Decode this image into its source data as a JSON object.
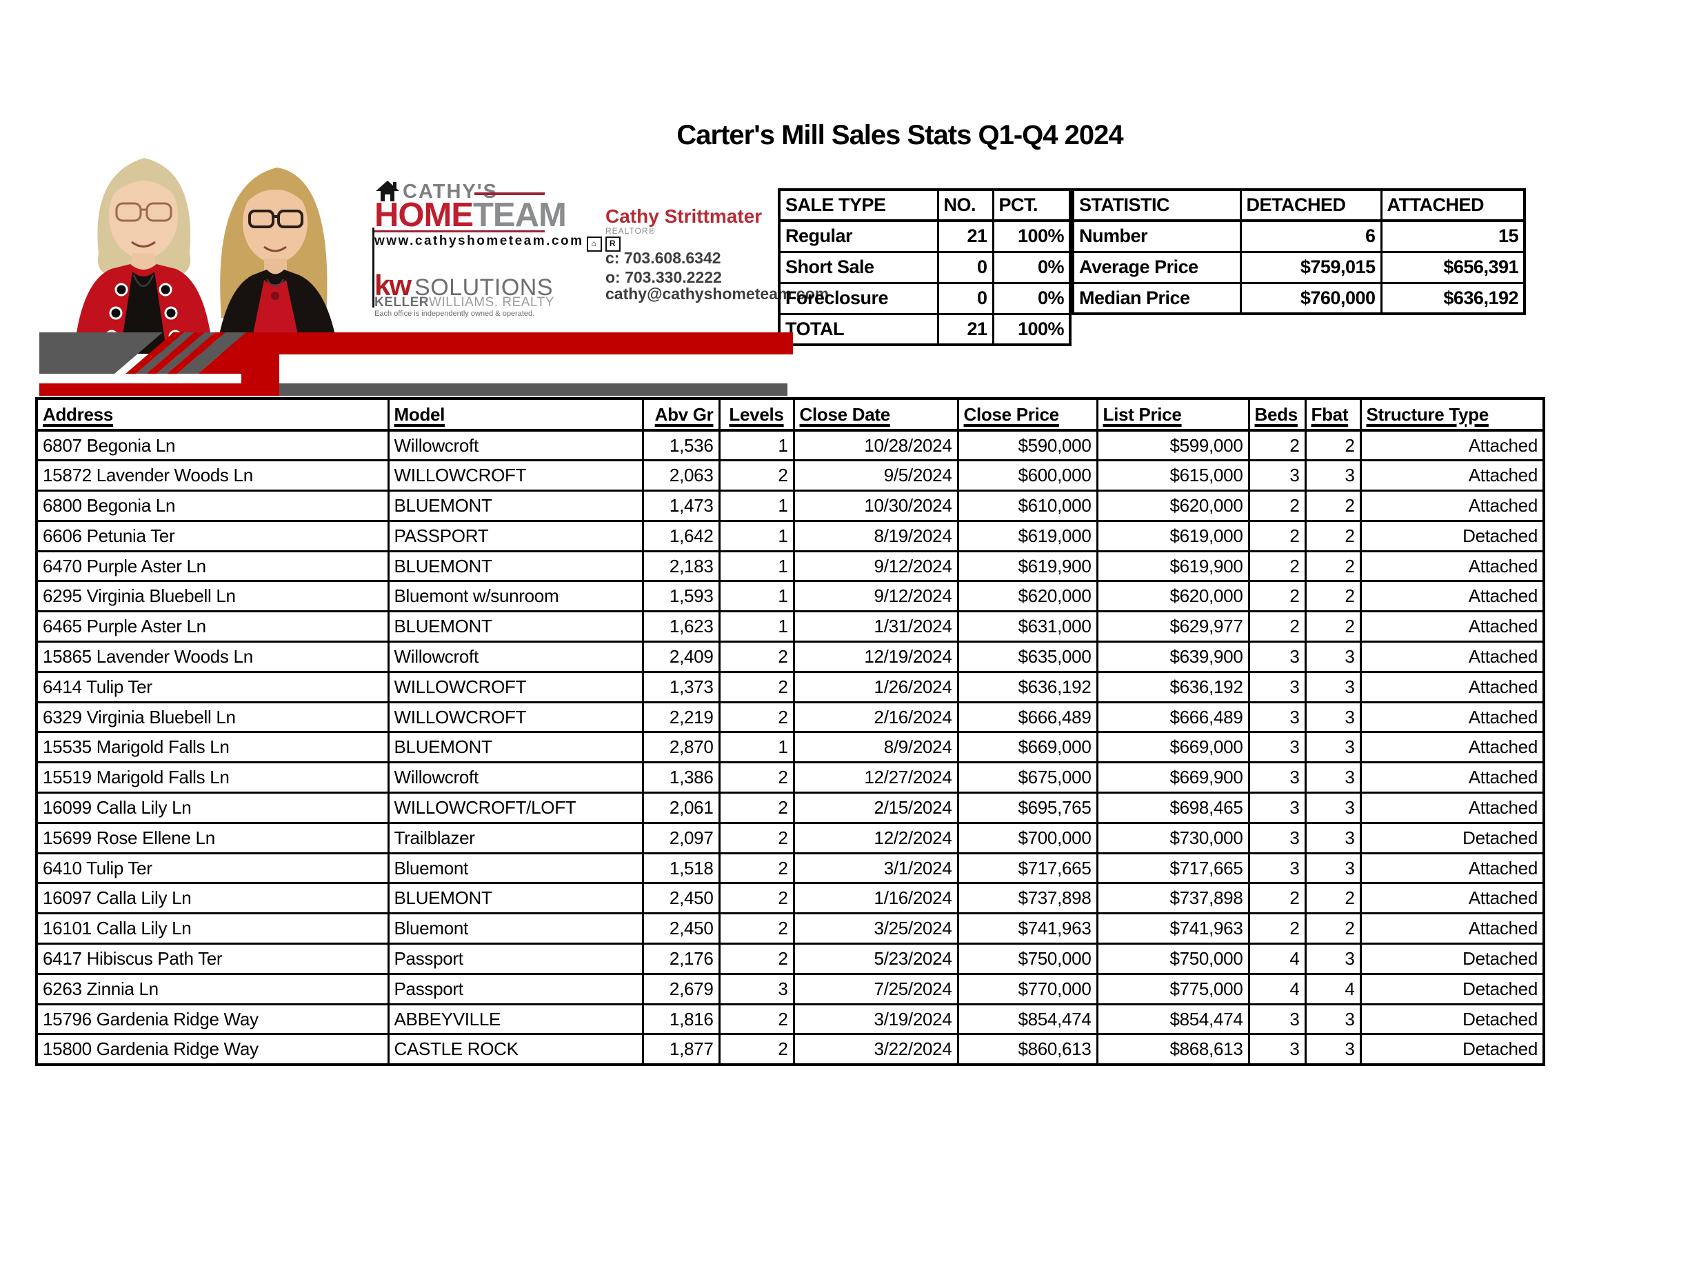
{
  "header": {
    "title": "Carter's Mill Sales Stats Q1-Q4 2024"
  },
  "branding": {
    "logo": {
      "cathys": "CATHY'S",
      "home": "HOME",
      "team": "TEAM",
      "website": "www.cathyshometeam.com",
      "kw": "kw",
      "solutions": "SOLUTIONS",
      "keller": "KELLER",
      "williams_realty": "WILLIAMS. REALTY",
      "disclaimer": "Each office is independently owned & operated."
    },
    "agent": {
      "name": "Cathy Strittmater",
      "title": "REALTOR®",
      "cell": "c: 703.608.6342",
      "office": "o: 703.330.2222",
      "email": "cathy@cathyshometeam.com"
    },
    "icons": {
      "equal_housing": "⌂",
      "realtor": "R"
    }
  },
  "tables": {
    "sale_type": {
      "headers": [
        "SALE TYPE",
        "NO.",
        "PCT."
      ],
      "rows": [
        [
          "Regular",
          "21",
          "100%"
        ],
        [
          "Short Sale",
          "0",
          "0%"
        ],
        [
          "Foreclosure",
          "0",
          "0%"
        ],
        [
          "TOTAL",
          "21",
          "100%"
        ]
      ]
    },
    "statistic": {
      "headers": [
        "STATISTIC",
        "DETACHED",
        "ATTACHED"
      ],
      "rows": [
        [
          "Number",
          "6",
          "15"
        ],
        [
          "Average Price",
          "$759,015",
          "$656,391"
        ],
        [
          "Median Price",
          "$760,000",
          "$636,192"
        ]
      ]
    },
    "sales": {
      "headers": [
        "Address",
        "Model",
        "Abv Gr",
        "Levels",
        "Close Date",
        "Close Price",
        "List Price",
        "Beds",
        "Fbat",
        "Structure Type"
      ],
      "rows": [
        [
          "6807 Begonia Ln",
          "Willowcroft",
          "1,536",
          "1",
          "10/28/2024",
          "$590,000",
          "$599,000",
          "2",
          "2",
          "Attached"
        ],
        [
          "15872 Lavender Woods Ln",
          "WILLOWCROFT",
          "2,063",
          "2",
          "9/5/2024",
          "$600,000",
          "$615,000",
          "3",
          "3",
          "Attached"
        ],
        [
          "6800 Begonia Ln",
          "BLUEMONT",
          "1,473",
          "1",
          "10/30/2024",
          "$610,000",
          "$620,000",
          "2",
          "2",
          "Attached"
        ],
        [
          "6606 Petunia Ter",
          "PASSPORT",
          "1,642",
          "1",
          "8/19/2024",
          "$619,000",
          "$619,000",
          "2",
          "2",
          "Detached"
        ],
        [
          "6470 Purple Aster Ln",
          "BLUEMONT",
          "2,183",
          "1",
          "9/12/2024",
          "$619,900",
          "$619,900",
          "2",
          "2",
          "Attached"
        ],
        [
          "6295 Virginia Bluebell Ln",
          "Bluemont w/sunroom",
          "1,593",
          "1",
          "9/12/2024",
          "$620,000",
          "$620,000",
          "2",
          "2",
          "Attached"
        ],
        [
          "6465 Purple Aster Ln",
          "BLUEMONT",
          "1,623",
          "1",
          "1/31/2024",
          "$631,000",
          "$629,977",
          "2",
          "2",
          "Attached"
        ],
        [
          "15865 Lavender Woods Ln",
          "Willowcroft",
          "2,409",
          "2",
          "12/19/2024",
          "$635,000",
          "$639,900",
          "3",
          "3",
          "Attached"
        ],
        [
          "6414 Tulip Ter",
          "WILLOWCROFT",
          "1,373",
          "2",
          "1/26/2024",
          "$636,192",
          "$636,192",
          "3",
          "3",
          "Attached"
        ],
        [
          "6329 Virginia Bluebell Ln",
          "WILLOWCROFT",
          "2,219",
          "2",
          "2/16/2024",
          "$666,489",
          "$666,489",
          "3",
          "3",
          "Attached"
        ],
        [
          "15535 Marigold Falls Ln",
          "BLUEMONT",
          "2,870",
          "1",
          "8/9/2024",
          "$669,000",
          "$669,000",
          "3",
          "3",
          "Attached"
        ],
        [
          "15519 Marigold Falls Ln",
          "Willowcroft",
          "1,386",
          "2",
          "12/27/2024",
          "$675,000",
          "$669,900",
          "3",
          "3",
          "Attached"
        ],
        [
          "16099 Calla Lily Ln",
          "WILLOWCROFT/LOFT",
          "2,061",
          "2",
          "2/15/2024",
          "$695,765",
          "$698,465",
          "3",
          "3",
          "Attached"
        ],
        [
          "15699 Rose Ellene Ln",
          "Trailblazer",
          "2,097",
          "2",
          "12/2/2024",
          "$700,000",
          "$730,000",
          "3",
          "3",
          "Detached"
        ],
        [
          "6410 Tulip Ter",
          "Bluemont",
          "1,518",
          "2",
          "3/1/2024",
          "$717,665",
          "$717,665",
          "3",
          "3",
          "Attached"
        ],
        [
          "16097 Calla Lily Ln",
          "BLUEMONT",
          "2,450",
          "2",
          "1/16/2024",
          "$737,898",
          "$737,898",
          "2",
          "2",
          "Attached"
        ],
        [
          "16101 Calla Lily Ln",
          "Bluemont",
          "2,450",
          "2",
          "3/25/2024",
          "$741,963",
          "$741,963",
          "2",
          "2",
          "Attached"
        ],
        [
          "6417 Hibiscus Path Ter",
          "Passport",
          "2,176",
          "2",
          "5/23/2024",
          "$750,000",
          "$750,000",
          "4",
          "3",
          "Detached"
        ],
        [
          "6263 Zinnia Ln",
          "Passport",
          "2,679",
          "3",
          "7/25/2024",
          "$770,000",
          "$775,000",
          "4",
          "4",
          "Detached"
        ],
        [
          "15796 Gardenia Ridge Way",
          "ABBEYVILLE",
          "1,816",
          "2",
          "3/19/2024",
          "$854,474",
          "$854,474",
          "3",
          "3",
          "Detached"
        ],
        [
          "15800 Gardenia Ridge Way",
          "CASTLE ROCK",
          "1,877",
          "2",
          "3/22/2024",
          "$860,613",
          "$868,613",
          "3",
          "3",
          "Detached"
        ]
      ]
    }
  },
  "colors": {
    "banner_red": "#c00000",
    "banner_gray": "#595959",
    "logo_red": "#be1e2d",
    "logo_gray": "#8a8c8e",
    "agent_red": "#b72b35"
  }
}
